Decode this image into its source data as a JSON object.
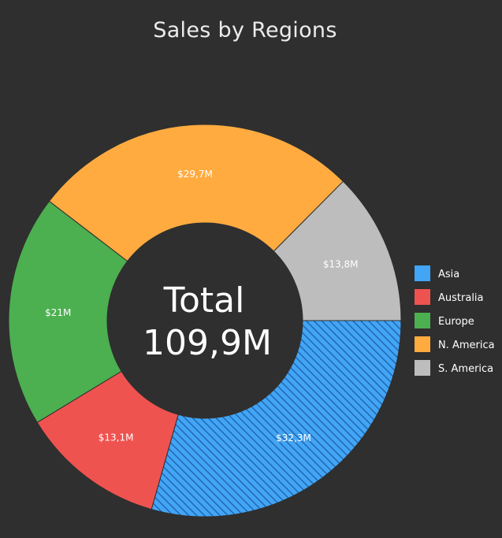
{
  "chart_data": {
    "type": "pie",
    "variant": "donut",
    "title": "Sales by Regions",
    "center_label": "Total",
    "center_value": "109,9M",
    "slices": [
      {
        "name": "Asia",
        "value": 32.3,
        "label": "$32,3M",
        "color": "#42a5f5",
        "pattern": "diagonal-stripes"
      },
      {
        "name": "Australia",
        "value": 13.1,
        "label": "$13,1M",
        "color": "#ef5350"
      },
      {
        "name": "Europe",
        "value": 21.0,
        "label": "$21M",
        "color": "#4caf50"
      },
      {
        "name": "N. America",
        "value": 29.7,
        "label": "$29,7M",
        "color": "#ffab40"
      },
      {
        "name": "S. America",
        "value": 13.8,
        "label": "$13,8M",
        "color": "#bdbdbd"
      }
    ],
    "legend": [
      "Asia",
      "Australia",
      "Europe",
      "N. America",
      "S. America"
    ],
    "legend_position": "right",
    "background": "#2f2f2f"
  }
}
